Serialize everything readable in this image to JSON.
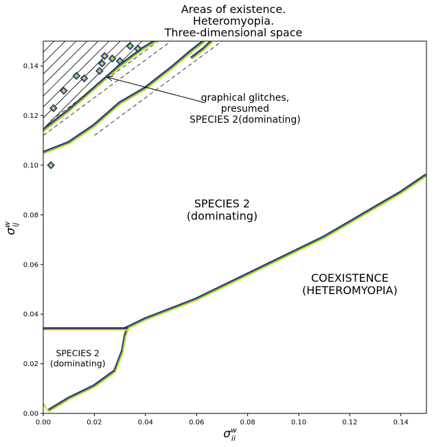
{
  "chart_data": {
    "type": "contour",
    "title_lines": [
      "Areas of existence.",
      "Heteromyopia.",
      "Three-dimensional space"
    ],
    "xlabel": "σ",
    "xlabel_sup": "w",
    "xlabel_sub": "ii",
    "ylabel": "σ",
    "ylabel_sup": "w",
    "ylabel_sub": "ij",
    "xlim": [
      0.0,
      0.15
    ],
    "ylim": [
      0.0,
      0.15
    ],
    "x_ticks": [
      "0.00",
      "0.02",
      "0.04",
      "0.06",
      "0.08",
      "0.10",
      "0.12",
      "0.14"
    ],
    "y_ticks": [
      "0.00",
      "0.02",
      "0.04",
      "0.06",
      "0.08",
      "0.10",
      "0.12",
      "0.14"
    ],
    "contour_colors": [
      "#440154",
      "#3b528b",
      "#21918c",
      "#5ec962",
      "#fde725"
    ],
    "boundaries": {
      "coexistence_boundary": [
        [
          0.032,
          0.034
        ],
        [
          0.04,
          0.038
        ],
        [
          0.05,
          0.042
        ],
        [
          0.06,
          0.046
        ],
        [
          0.07,
          0.051
        ],
        [
          0.08,
          0.056
        ],
        [
          0.09,
          0.061
        ],
        [
          0.1,
          0.066
        ],
        [
          0.11,
          0.071
        ],
        [
          0.12,
          0.077
        ],
        [
          0.13,
          0.083
        ],
        [
          0.14,
          0.089
        ],
        [
          0.15,
          0.096
        ]
      ],
      "lower_region_boundary": [
        [
          0.0,
          0.004
        ],
        [
          0.002,
          0.001
        ],
        [
          0.01,
          0.006
        ],
        [
          0.02,
          0.011
        ],
        [
          0.028,
          0.017
        ],
        [
          0.031,
          0.025
        ],
        [
          0.032,
          0.031
        ],
        [
          0.033,
          0.034
        ],
        [
          0.0,
          0.034
        ]
      ],
      "glitch_band_lower": [
        [
          0.0,
          0.105
        ],
        [
          0.01,
          0.109
        ],
        [
          0.02,
          0.116
        ],
        [
          0.03,
          0.125
        ],
        [
          0.04,
          0.131
        ],
        [
          0.05,
          0.139
        ],
        [
          0.058,
          0.146
        ],
        [
          0.063,
          0.15
        ]
      ],
      "glitch_band_upper": [
        [
          0.0,
          0.114
        ],
        [
          0.01,
          0.122
        ],
        [
          0.02,
          0.131
        ],
        [
          0.03,
          0.14
        ],
        [
          0.039,
          0.147
        ],
        [
          0.044,
          0.15
        ]
      ],
      "glitch_band_upper_right": [
        [
          0.058,
          0.143
        ],
        [
          0.063,
          0.147
        ],
        [
          0.066,
          0.15
        ]
      ]
    },
    "glitch_islands": [
      [
        0.003,
        0.1
      ],
      [
        0.008,
        0.13
      ],
      [
        0.004,
        0.123
      ],
      [
        0.016,
        0.135
      ],
      [
        0.022,
        0.138
      ],
      [
        0.023,
        0.141
      ],
      [
        0.027,
        0.143
      ],
      [
        0.03,
        0.142
      ],
      [
        0.024,
        0.144
      ],
      [
        0.034,
        0.148
      ],
      [
        0.037,
        0.147
      ],
      [
        0.013,
        0.136
      ]
    ],
    "annotations": [
      {
        "lines": [
          "graphical glitches,",
          "presumed",
          "SPECIES 2(dominating)"
        ],
        "x": 0.079,
        "y": 0.126,
        "arrow_to": [
          0.025,
          0.1355
        ],
        "style": "mid"
      },
      {
        "lines": [
          "SPECIES 2",
          "(dominating)"
        ],
        "x": 0.07,
        "y": 0.083,
        "style": "big"
      },
      {
        "lines": [
          "COEXISTENCE",
          "(HETEROMYOPIA)"
        ],
        "x": 0.12,
        "y": 0.053,
        "style": "big"
      },
      {
        "lines": [
          "SPECIES 2",
          "(dominating)"
        ],
        "x": 0.0135,
        "y": 0.023,
        "style": "small"
      }
    ],
    "hatch_region": "upper-left corner",
    "grid": false
  }
}
